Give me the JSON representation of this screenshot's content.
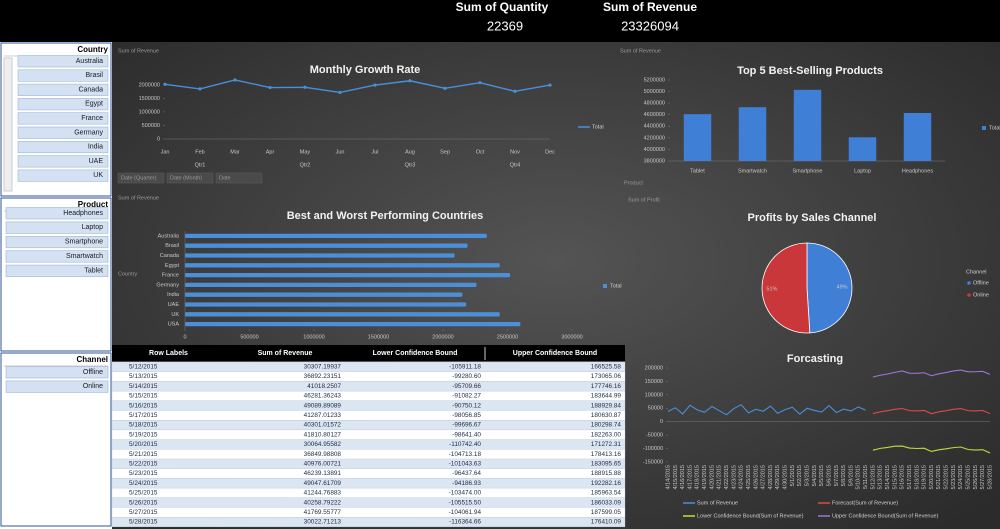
{
  "header": {
    "quantity_label": "Sum of Quantity",
    "quantity": "22369",
    "revenue_label": "Sum of Revenue",
    "revenue": "23326094"
  },
  "slicers": [
    {
      "title": "Country",
      "items": [
        "Australia",
        "Brasil",
        "Canada",
        "Egypt",
        "France",
        "Germany",
        "India",
        "UAE",
        "UK"
      ]
    },
    {
      "title": "Product",
      "items": [
        "Headphones",
        "Laptop",
        "Smartphone",
        "Smartwatch",
        "Tablet"
      ]
    },
    {
      "title": "Channel",
      "items": [
        "Offline",
        "Online"
      ]
    }
  ],
  "chart_data": [
    {
      "type": "line",
      "title": "Monthly Growth Rate",
      "field_buttons": [
        "Sum of Revenue"
      ],
      "categories": [
        "Jan",
        "Feb",
        "Mar",
        "Apr",
        "May",
        "Jun",
        "Jul",
        "Aug",
        "Sep",
        "Oct",
        "Nov",
        "Dec"
      ],
      "groups": [
        "Qtr1",
        "Qtr2",
        "Qtr3",
        "Qtr4"
      ],
      "axis_buttons": [
        "Date (Quarter)",
        "Date (Month)",
        "Date"
      ],
      "series": [
        {
          "name": "Total",
          "color": "#4a8fd8",
          "values": [
            2020000,
            1850000,
            2180000,
            1900000,
            1910000,
            1720000,
            1990000,
            2150000,
            1870000,
            2080000,
            1760000,
            1990000
          ]
        }
      ],
      "ylim": [
        0,
        2400000
      ],
      "yticks": [
        0,
        500000,
        1000000,
        1500000,
        2000000
      ],
      "legend": "right"
    },
    {
      "type": "bar",
      "title": "Top 5 Best-Selling Products",
      "field_buttons": [
        "Sum of Revenue",
        "Product"
      ],
      "categories": [
        "Tablet",
        "Smartwatch",
        "Smartphone",
        "Laptop",
        "Headphones"
      ],
      "series": [
        {
          "name": "Total",
          "color": "#3f7fd6",
          "values": [
            4610000,
            4730000,
            5030000,
            4210000,
            4630000
          ]
        }
      ],
      "ylim": [
        3800000,
        5200000
      ],
      "yticks": [
        3800000,
        4000000,
        4200000,
        4400000,
        4600000,
        4800000,
        5000000,
        5200000
      ],
      "legend": "right"
    },
    {
      "type": "barh",
      "title": "Best and Worst Performing Countries",
      "field_buttons": [
        "Sum of Revenue",
        "Country"
      ],
      "categories": [
        "Australia",
        "Brasil",
        "Canada",
        "Egypt",
        "France",
        "Germany",
        "India",
        "UAE",
        "UK",
        "USA"
      ],
      "series": [
        {
          "name": "Total",
          "color": "#4a8fd8",
          "values": [
            2340000,
            2190000,
            2090000,
            2440000,
            2520000,
            2260000,
            2150000,
            2180000,
            2440000,
            2600000
          ]
        }
      ],
      "xlim": [
        0,
        3000000
      ],
      "xticks": [
        0,
        500000,
        1000000,
        1500000,
        2000000,
        2500000,
        3000000
      ],
      "legend": "right"
    },
    {
      "type": "pie",
      "title": "Profits by Sales Channel",
      "field_buttons": [
        "Sum of Profit"
      ],
      "legend_title": "Channel",
      "categories": [
        "Offline",
        "Online"
      ],
      "values": [
        49,
        51
      ],
      "value_labels": [
        "49%",
        "51%"
      ],
      "colors": [
        "#3f7fd6",
        "#c9373a"
      ],
      "legend": "right"
    },
    {
      "type": "line",
      "title": "Forcasting",
      "categories": [
        "4/14/2015",
        "4/15/2015",
        "4/16/2015",
        "4/17/2015",
        "4/18/2015",
        "4/19/2015",
        "4/20/2015",
        "4/21/2015",
        "4/22/2015",
        "4/23/2015",
        "4/24/2015",
        "4/25/2015",
        "4/26/2015",
        "4/27/2015",
        "4/28/2015",
        "4/29/2015",
        "4/30/2015",
        "5/1/2015",
        "5/2/2015",
        "5/3/2015",
        "5/4/2015",
        "5/5/2015",
        "5/6/2015",
        "5/7/2015",
        "5/8/2015",
        "5/9/2015",
        "5/10/2015",
        "5/11/2015",
        "5/12/2015",
        "5/13/2015",
        "5/14/2015",
        "5/15/2015",
        "5/16/2015",
        "5/17/2015",
        "5/18/2015",
        "5/19/2015",
        "5/20/2015",
        "5/21/2015",
        "5/22/2015",
        "5/23/2015",
        "5/24/2015",
        "5/25/2015",
        "5/26/2015",
        "5/27/2015",
        "5/28/2015"
      ],
      "series": [
        {
          "name": "Sum of Revenue",
          "color": "#4a8fd8",
          "values": [
            38000,
            52000,
            29000,
            61000,
            44000,
            35000,
            57000,
            41000,
            26000,
            49000,
            63000,
            33000,
            46000,
            39000,
            58000,
            31000,
            45000,
            54000,
            28000,
            50000,
            42000,
            36000,
            60000,
            34000,
            47000,
            40000,
            55000,
            43000,
            null,
            null,
            null,
            null,
            null,
            null,
            null,
            null,
            null,
            null,
            null,
            null,
            null,
            null,
            null,
            null,
            null
          ]
        },
        {
          "name": "Forecast(Sum of Revenue)",
          "color": "#e04848",
          "values": [
            null,
            null,
            null,
            null,
            null,
            null,
            null,
            null,
            null,
            null,
            null,
            null,
            null,
            null,
            null,
            null,
            null,
            null,
            null,
            null,
            null,
            null,
            null,
            null,
            null,
            null,
            null,
            null,
            30307.19937,
            36892.23151,
            41018.2507,
            46281.36243,
            49089.89089,
            41287.01233,
            40301.01572,
            41810.80127,
            30064.95582,
            36849.98808,
            40976.00721,
            46239.13891,
            49047.61709,
            41244.76883,
            40258.79222,
            41769.55777,
            30022.71213
          ]
        },
        {
          "name": "Lower Confidence Bound(Sum of Revenue)",
          "color": "#c8da3c",
          "values": [
            null,
            null,
            null,
            null,
            null,
            null,
            null,
            null,
            null,
            null,
            null,
            null,
            null,
            null,
            null,
            null,
            null,
            null,
            null,
            null,
            null,
            null,
            null,
            null,
            null,
            null,
            null,
            null,
            -105911.18,
            -99280.6,
            -95709.66,
            -91082.27,
            -90750.12,
            -98056.85,
            -99696.67,
            -98641.4,
            -110742.4,
            -104713.18,
            -101043.63,
            -96437.64,
            -94186.93,
            -103474,
            -105515.5,
            -104061.94,
            -116364.66
          ]
        },
        {
          "name": "Upper Confidence Bound(Sum of Revenue)",
          "color": "#a273d6",
          "values": [
            null,
            null,
            null,
            null,
            null,
            null,
            null,
            null,
            null,
            null,
            null,
            null,
            null,
            null,
            null,
            null,
            null,
            null,
            null,
            null,
            null,
            null,
            null,
            null,
            null,
            null,
            null,
            null,
            166525.58,
            173065.06,
            177746.16,
            183644.99,
            188929.84,
            180630.87,
            180298.74,
            182263,
            171272.31,
            178413.16,
            183095.65,
            188915.88,
            192282.16,
            185963.54,
            186033.09,
            187599.05,
            176410.09
          ]
        }
      ],
      "ylim": [
        -150000,
        200000
      ],
      "yticks": [
        -150000,
        -100000,
        -50000,
        0,
        50000,
        100000,
        150000,
        200000
      ],
      "legend": "bottom"
    }
  ],
  "table": {
    "columns": [
      "Row Labels",
      "Sum of Revenue",
      "Lower Confidence Bound",
      "Upper Confidence Bound"
    ],
    "rows": [
      [
        "5/12/2015",
        "30307.19937",
        "-105911.18",
        "166525.58"
      ],
      [
        "5/13/2015",
        "36892.23151",
        "-99280.60",
        "173065.06"
      ],
      [
        "5/14/2015",
        "41018.2507",
        "-95709.66",
        "177746.16"
      ],
      [
        "5/15/2015",
        "46281.36243",
        "-91082.27",
        "183644.99"
      ],
      [
        "5/16/2015",
        "49089.89089",
        "-90750.12",
        "188929.84"
      ],
      [
        "5/17/2015",
        "41287.01233",
        "-98056.85",
        "180630.87"
      ],
      [
        "5/18/2015",
        "40301.01572",
        "-99696.67",
        "180298.74"
      ],
      [
        "5/19/2015",
        "41810.80127",
        "-98641.40",
        "182263.00"
      ],
      [
        "5/20/2015",
        "30064.95582",
        "-110742.40",
        "171272.31"
      ],
      [
        "5/21/2015",
        "36849.98808",
        "-104713.18",
        "178413.16"
      ],
      [
        "5/22/2015",
        "40976.00721",
        "-101043.63",
        "183095.65"
      ],
      [
        "5/23/2015",
        "46239.13891",
        "-96437.64",
        "188915.88"
      ],
      [
        "5/24/2015",
        "49047.61709",
        "-94186.93",
        "192282.16"
      ],
      [
        "5/25/2015",
        "41244.76883",
        "-103474.00",
        "185963.54"
      ],
      [
        "5/26/2015",
        "40258.79222",
        "-105515.50",
        "186033.09"
      ],
      [
        "5/27/2015",
        "41769.55777",
        "-104061.94",
        "187599.05"
      ],
      [
        "5/28/2015",
        "30022.71213",
        "-116364.66",
        "176410.09"
      ]
    ]
  }
}
